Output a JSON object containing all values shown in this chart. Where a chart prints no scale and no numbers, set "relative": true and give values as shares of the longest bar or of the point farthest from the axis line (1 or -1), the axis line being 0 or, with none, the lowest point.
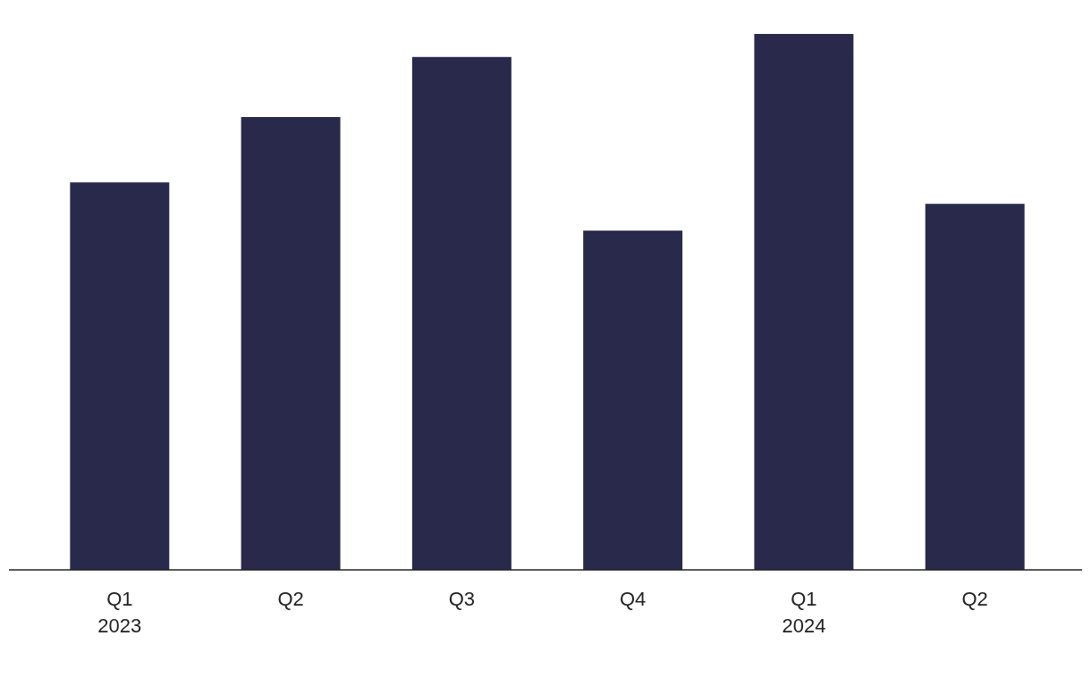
{
  "chart_data": {
    "type": "bar",
    "relative": true,
    "categories": [
      "Q1\n2023",
      "Q2",
      "Q3",
      "Q4",
      "Q1\n2024",
      "Q2"
    ],
    "values": [
      0.723,
      0.845,
      0.957,
      0.633,
      1,
      0.683
    ],
    "color": "#29294b"
  }
}
